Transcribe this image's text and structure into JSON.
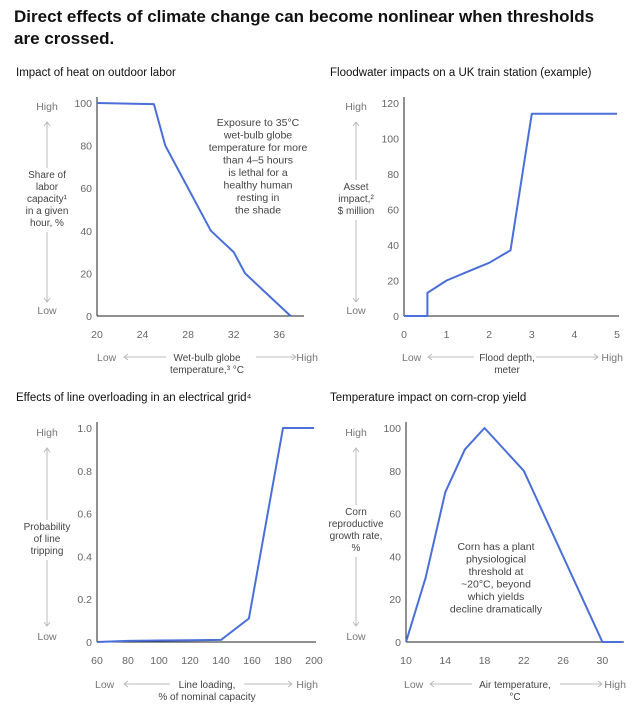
{
  "title_line1": "Direct effects of climate change can become nonlinear when thresholds",
  "title_line2": "are crossed.",
  "chart_data": [
    {
      "type": "line",
      "title": "Impact of heat on outdoor labor",
      "ylabel_lines": [
        "Share of",
        "labor",
        "capacity¹",
        "in a given",
        "hour, %"
      ],
      "xlabel_lines": [
        "Wet-bulb globe",
        "temperature,³ °C"
      ],
      "high_label": "High",
      "low_label": "Low",
      "x_low": "Low",
      "x_high": "High",
      "xlim": [
        20,
        38
      ],
      "ylim": [
        0,
        100
      ],
      "xticks": [
        "20",
        "24",
        "28",
        "32",
        "36"
      ],
      "xtick_values": [
        20,
        24,
        28,
        32,
        36
      ],
      "yticks": [
        "0",
        "20",
        "40",
        "60",
        "80",
        "100"
      ],
      "ytick_values": [
        0,
        20,
        40,
        60,
        80,
        100
      ],
      "annotation": [
        "Exposure to 35°C",
        "wet-bulb globe",
        "temperature for more",
        "than 4–5 hours",
        "is lethal for a",
        "healthy human",
        "resting in",
        "the shade"
      ],
      "x": [
        20,
        25,
        26,
        30,
        32,
        33,
        37
      ],
      "y": [
        100,
        99.5,
        80,
        40,
        30,
        20,
        0
      ]
    },
    {
      "type": "line",
      "title": "Floodwater impacts on a UK train station (example)",
      "ylabel_lines": [
        "Asset",
        "impact,²",
        "$ million"
      ],
      "xlabel_lines": [
        "Flood depth,",
        "meter"
      ],
      "high_label": "High",
      "low_label": "Low",
      "x_low": "Low",
      "x_high": "High",
      "xlim": [
        0,
        5
      ],
      "ylim": [
        0,
        120
      ],
      "xticks": [
        "0",
        "1",
        "2",
        "3",
        "4",
        "5"
      ],
      "xtick_values": [
        0,
        1,
        2,
        3,
        4,
        5
      ],
      "yticks": [
        "0",
        "20",
        "40",
        "60",
        "80",
        "100",
        "120"
      ],
      "ytick_values": [
        0,
        20,
        40,
        60,
        80,
        100,
        120
      ],
      "x": [
        0,
        0.55,
        0.55,
        1,
        1.5,
        2,
        2.5,
        3,
        5
      ],
      "y": [
        0,
        0,
        13,
        20,
        25,
        30,
        37,
        114,
        114
      ]
    },
    {
      "type": "line",
      "title": "Effects of line overloading in an electrical grid⁴",
      "ylabel_lines": [
        "Probability",
        "of line",
        "tripping"
      ],
      "xlabel_lines": [
        "Line loading,",
        "% of nominal capacity"
      ],
      "high_label": "High",
      "low_label": "Low",
      "x_low": "Low",
      "x_high": "High",
      "xlim": [
        60,
        200
      ],
      "ylim": [
        0,
        1.0
      ],
      "xticks": [
        "60",
        "80",
        "100",
        "120",
        "140",
        "160",
        "180",
        "200"
      ],
      "xtick_values": [
        60,
        80,
        100,
        120,
        140,
        160,
        180,
        200
      ],
      "yticks": [
        "0",
        "0.2",
        "0.4",
        "0.6",
        "0.8",
        "1.0"
      ],
      "ytick_values": [
        0,
        0.2,
        0.4,
        0.6,
        0.8,
        1.0
      ],
      "x": [
        60,
        80,
        100,
        120,
        140,
        158,
        180,
        200
      ],
      "y": [
        0,
        0.005,
        0.007,
        0.008,
        0.01,
        0.11,
        1.0,
        1.0
      ]
    },
    {
      "type": "line",
      "title": "Temperature impact on corn-crop yield",
      "ylabel_lines": [
        "Corn",
        "reproductive",
        "growth rate,",
        "%"
      ],
      "xlabel_lines": [
        "Air temperature,",
        "°C"
      ],
      "high_label": "High",
      "low_label": "Low",
      "x_low": "Low",
      "x_high": "High",
      "xlim": [
        10,
        32
      ],
      "ylim": [
        0,
        100
      ],
      "xticks": [
        "10",
        "14",
        "18",
        "22",
        "26",
        "30"
      ],
      "xtick_values": [
        10,
        14,
        18,
        22,
        26,
        30
      ],
      "yticks": [
        "0",
        "20",
        "40",
        "60",
        "80",
        "100"
      ],
      "ytick_values": [
        0,
        20,
        40,
        60,
        80,
        100
      ],
      "annotation": [
        "Corn has a plant",
        "physiological",
        "threshold at",
        "~20°C, beyond",
        "which yields",
        "decline dramatically"
      ],
      "x": [
        10,
        12,
        14,
        16,
        18,
        22,
        30,
        32
      ],
      "y": [
        0,
        30,
        70,
        90,
        100,
        80,
        0,
        0
      ]
    }
  ]
}
